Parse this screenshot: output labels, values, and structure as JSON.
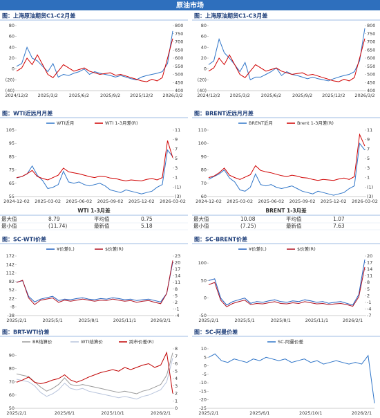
{
  "header": {
    "title": "原油市场"
  },
  "tables": [
    {
      "title": "WTI 1-3月差",
      "rows": [
        [
          "最大值",
          "8.79",
          "平均值",
          "0.75"
        ],
        [
          "最小值",
          "(11.74)",
          "最新值",
          "5.18"
        ]
      ]
    },
    {
      "title": "BRENT 1-3月差",
      "rows": [
        [
          "最大值",
          "10.08",
          "平均值",
          "1.07"
        ],
        [
          "最小值",
          "(7.25)",
          "最新值",
          "7.63"
        ]
      ]
    }
  ],
  "chart_data": [
    {
      "type": "line",
      "title": "图：上海原油期货C1-C2月差",
      "categories": [
        "2024/12/2",
        null,
        null,
        null,
        null,
        null,
        "2025/3/2",
        null,
        null,
        null,
        null,
        null,
        "2025/6/2",
        null,
        null,
        null,
        null,
        null,
        "2025/9/2",
        null,
        null,
        null,
        null,
        null,
        "2025/12/2",
        null,
        null,
        null,
        null,
        null,
        "2026/3/2"
      ],
      "series": [
        {
          "color": "#2f75c8",
          "values": [
            5,
            10,
            40,
            20,
            15,
            5,
            -5,
            10,
            -15,
            -10,
            -12,
            -8,
            -5,
            0,
            -10,
            -5,
            -8,
            -10,
            -12,
            -15,
            -12,
            -15,
            -18,
            -20,
            -15,
            -12,
            -10,
            -8,
            -5,
            10,
            70
          ]
        },
        {
          "color": "#d00000",
          "axis": "y2",
          "values": [
            520,
            540,
            600,
            560,
            620,
            560,
            500,
            480,
            520,
            560,
            540,
            520,
            530,
            540,
            520,
            510,
            500,
            505,
            510,
            495,
            500,
            490,
            480,
            470,
            460,
            455,
            470,
            460,
            480,
            600,
            720
          ]
        }
      ],
      "ylim": [
        -40,
        80
      ],
      "yticks": [
        80,
        60,
        40,
        20,
        0,
        {
          "value": -20,
          "label": "(20)"
        },
        {
          "value": -40,
          "label": "(40)"
        }
      ],
      "y2lim": [
        400,
        800
      ],
      "y2ticks": [
        800,
        750,
        700,
        650,
        600,
        550,
        500,
        450,
        400
      ]
    },
    {
      "type": "line",
      "title": "图：上海原油期货C1-C3月差",
      "categories": [
        "2024/12/2",
        null,
        null,
        null,
        null,
        null,
        "2025/3/2",
        null,
        null,
        null,
        null,
        null,
        "2025/6/2",
        null,
        null,
        null,
        null,
        null,
        "2025/9/2",
        null,
        null,
        null,
        null,
        null,
        "2025/12/2",
        null,
        null,
        null,
        null,
        null,
        "2026/3/2"
      ],
      "series": [
        {
          "color": "#2f75c8",
          "values": [
            8,
            15,
            55,
            30,
            20,
            8,
            -5,
            12,
            -20,
            -15,
            -15,
            -10,
            -5,
            2,
            -12,
            -5,
            -10,
            -12,
            -15,
            -18,
            -15,
            -18,
            -20,
            -22,
            -18,
            -15,
            -12,
            -10,
            -5,
            15,
            75
          ]
        },
        {
          "color": "#d00000",
          "axis": "y2",
          "values": [
            520,
            540,
            600,
            560,
            620,
            560,
            500,
            480,
            520,
            560,
            540,
            520,
            530,
            540,
            520,
            510,
            500,
            505,
            510,
            495,
            500,
            490,
            480,
            470,
            460,
            455,
            470,
            460,
            480,
            600,
            720
          ]
        }
      ],
      "ylim": [
        -40,
        80
      ],
      "yticks": [
        80,
        60,
        40,
        20,
        0,
        {
          "value": -20,
          "label": "(20)"
        },
        {
          "value": -40,
          "label": "(40)"
        }
      ],
      "y2lim": [
        400,
        800
      ],
      "y2ticks": [
        800,
        750,
        700,
        650,
        600,
        550,
        500,
        450,
        400
      ]
    },
    {
      "type": "line",
      "title": "图：WTI近远月月差",
      "categories": [
        "2024-12-02",
        null,
        null,
        null,
        null,
        null,
        "2025-03-02",
        null,
        null,
        null,
        null,
        null,
        "2025-06-02",
        null,
        null,
        null,
        null,
        null,
        "2025-09-02",
        null,
        null,
        null,
        null,
        null,
        "2025-12-02",
        null,
        null,
        null,
        null,
        null,
        "2026-03-02"
      ],
      "series": [
        {
          "name": "WTI近月",
          "color": "#2f75c8",
          "values": [
            69,
            70,
            72,
            78,
            71,
            67,
            61,
            62,
            64,
            74,
            66,
            65,
            66,
            64,
            63,
            64,
            65,
            63,
            60,
            59,
            58,
            60,
            59,
            58,
            57,
            58,
            59,
            62,
            64,
            90,
            85
          ]
        },
        {
          "name": "WTI 1-3月差(R)",
          "color": "#d00000",
          "axis": "y2",
          "values": [
            1,
            1.2,
            1.8,
            2.5,
            1.2,
            0.8,
            0.5,
            1,
            1.5,
            3,
            2.2,
            2,
            1.8,
            1.5,
            1.2,
            1,
            1.3,
            1.2,
            0.9,
            0.8,
            0.5,
            0.3,
            0.5,
            0.4,
            0.3,
            0.6,
            0.8,
            0.5,
            1,
            8.79,
            5.18
          ]
        }
      ],
      "ylim": [
        55,
        105
      ],
      "yticks": [
        105,
        95,
        85,
        75,
        65,
        55
      ],
      "y2lim": [
        -3,
        11
      ],
      "y2ticks": [
        11,
        9,
        7,
        5,
        3,
        1,
        {
          "value": -1,
          "label": "(1)"
        },
        {
          "value": -3,
          "label": "(3)"
        }
      ]
    },
    {
      "type": "line",
      "title": "图：BRENT近远月月差",
      "categories": [
        "2024-12-02",
        null,
        null,
        null,
        null,
        null,
        "2025-03-02",
        null,
        null,
        null,
        null,
        null,
        "2025-06-02",
        null,
        null,
        null,
        null,
        null,
        "2025-09-02",
        null,
        null,
        null,
        null,
        null,
        "2025-12-02",
        null,
        null,
        null,
        null,
        null,
        "2026-03-02"
      ],
      "series": [
        {
          "name": "BRENT近月",
          "color": "#2f75c8",
          "values": [
            73,
            75,
            77,
            80,
            74,
            71,
            65,
            64,
            67,
            77,
            69,
            68,
            69,
            67,
            66,
            67,
            68,
            66,
            64,
            63,
            62,
            64,
            63,
            62,
            61,
            62,
            63,
            66,
            68,
            100,
            95
          ]
        },
        {
          "name": "Brent 1-3月差(R)",
          "color": "#d00000",
          "axis": "y2",
          "values": [
            1,
            1.3,
            2,
            3,
            1.5,
            1,
            0.6,
            1.1,
            1.6,
            3.5,
            2.5,
            2.2,
            2,
            1.7,
            1.4,
            1.2,
            1.5,
            1.3,
            1,
            0.9,
            0.6,
            0.4,
            0.6,
            0.5,
            0.4,
            0.7,
            0.9,
            0.6,
            1.2,
            10.08,
            7.63
          ]
        }
      ],
      "ylim": [
        60,
        110
      ],
      "yticks": [
        110,
        100,
        90,
        80,
        70,
        60
      ],
      "y2lim": [
        -3,
        11
      ],
      "y2ticks": [
        11,
        9,
        7,
        5,
        3,
        1,
        {
          "value": -1,
          "label": "(1)"
        },
        {
          "value": -3,
          "label": "(3)"
        }
      ]
    },
    {
      "type": "line",
      "title": "图：SC-WTI价差",
      "categories": [
        "2025/2/1",
        null,
        null,
        null,
        null,
        null,
        "2025/5/1",
        null,
        null,
        null,
        null,
        null,
        "2025/8/1",
        null,
        null,
        null,
        null,
        null,
        "2025/11/1",
        null,
        null,
        null,
        null,
        null,
        "2026/2/1",
        null,
        null
      ],
      "series": [
        {
          "name": "¥价差(L)",
          "color": "#1f5fbf",
          "values": [
            80,
            85,
            30,
            10,
            20,
            25,
            30,
            15,
            20,
            18,
            22,
            25,
            20,
            18,
            22,
            20,
            25,
            22,
            18,
            20,
            15,
            18,
            20,
            15,
            10,
            40,
            150
          ]
        },
        {
          "name": "$价差(R)",
          "color": "#b01020",
          "axis": "y2",
          "values": [
            11,
            12,
            4,
            1,
            3,
            3.5,
            4,
            2,
            3,
            2.5,
            3,
            3.5,
            3,
            2.5,
            3,
            2.8,
            3.5,
            3,
            2.5,
            2.8,
            2,
            2.5,
            2.8,
            2,
            1.4,
            6,
            21
          ]
        }
      ],
      "ylim": [
        -38,
        172
      ],
      "yticks": [
        172,
        142,
        112,
        82,
        52,
        22,
        -8,
        -38
      ],
      "y2lim": [
        -4,
        23
      ],
      "y2ticks": [
        23,
        20,
        17,
        14,
        11,
        8,
        5,
        2,
        -1,
        -4
      ]
    },
    {
      "type": "line",
      "title": "图：SC-BRENT价差",
      "categories": [
        "2025/2/1",
        null,
        null,
        null,
        null,
        null,
        "2025/5/1",
        null,
        null,
        null,
        null,
        null,
        "2025/8/1",
        null,
        null,
        null,
        null,
        null,
        "2025/11/1",
        null,
        null,
        null,
        null,
        null,
        "2026/2/1",
        null,
        null
      ],
      "series": [
        {
          "name": "¥价差(L)",
          "color": "#1f5fbf",
          "values": [
            50,
            55,
            0,
            -20,
            -10,
            -5,
            0,
            -15,
            -10,
            -12,
            -8,
            -5,
            -10,
            -12,
            -8,
            -10,
            -5,
            -8,
            -12,
            -10,
            -15,
            -12,
            -10,
            -15,
            -20,
            10,
            110
          ]
        },
        {
          "name": "$价差(R)",
          "color": "#b01020",
          "axis": "y2",
          "values": [
            7,
            8,
            0,
            -3,
            -1.5,
            -0.7,
            0,
            -2,
            -1.5,
            -1.7,
            -1.2,
            -0.7,
            -1.5,
            -1.7,
            -1.2,
            -1.5,
            -0.7,
            -1.2,
            -1.7,
            -1.5,
            -2,
            -1.7,
            -1.5,
            -2,
            -2.8,
            1.5,
            15
          ]
        }
      ],
      "ylim": [
        -50,
        120
      ],
      "yticks": [
        100,
        50,
        0,
        -50
      ],
      "y2lim": [
        -7,
        20
      ],
      "y2ticks": [
        20,
        17,
        14,
        11,
        8,
        5,
        2,
        -1,
        -4,
        -7
      ]
    },
    {
      "type": "line",
      "title": "图：BRT-WTI价差",
      "categories": [
        "2025/2/1",
        null,
        null,
        null,
        null,
        null,
        null,
        null,
        "2025/6/1",
        null,
        null,
        null,
        null,
        null,
        null,
        null,
        "2025/10/1",
        null,
        null,
        null,
        null,
        null,
        null,
        null,
        "2026/2/1",
        null,
        null
      ],
      "series": [
        {
          "name": "BR结算价",
          "color": "#9a9a9a",
          "values": [
            76,
            75,
            74,
            70,
            66,
            63,
            65,
            68,
            73,
            68,
            67,
            68,
            67,
            66,
            65,
            64,
            63,
            62,
            63,
            62,
            61,
            63,
            64,
            66,
            68,
            75,
            92
          ]
        },
        {
          "name": "WTI结算价",
          "color": "#b8c4dc",
          "values": [
            72,
            71,
            70,
            67,
            62,
            59,
            61,
            64,
            69,
            65,
            64,
            65,
            63,
            62,
            61,
            60,
            59,
            58,
            59,
            58,
            57,
            59,
            60,
            62,
            64,
            70,
            88
          ]
        },
        {
          "name": "跨市价差(R)",
          "color": "#c00000",
          "axis": "y2",
          "values": [
            3.5,
            3.8,
            4.2,
            3.5,
            3.3,
            3.5,
            3.8,
            4,
            4.5,
            3.8,
            3.5,
            3.8,
            4.2,
            4.5,
            4.8,
            5,
            5.2,
            5,
            5.5,
            5.2,
            5.5,
            5.8,
            6,
            5.5,
            5.8,
            7.5,
            2
          ]
        }
      ],
      "ylim": [
        50,
        95
      ],
      "yticks": [
        90,
        80,
        70,
        60,
        50
      ],
      "y2lim": [
        0,
        8
      ],
      "y2ticks": [
        8,
        7,
        6,
        5,
        4,
        3,
        2,
        1,
        0
      ]
    },
    {
      "type": "line",
      "title": "图：SC-阿曼价差",
      "categories": [
        "2025/2/1",
        null,
        null,
        null,
        null,
        null,
        null,
        null,
        "2025/6/1",
        null,
        null,
        null,
        null,
        null,
        null,
        null,
        "2025/10/1",
        null,
        null,
        null,
        null,
        null,
        null,
        null,
        "2026/2/1",
        null,
        null
      ],
      "series": [
        {
          "name": "SC-阿曼价差",
          "color": "#2f75c8",
          "values": [
            5,
            7,
            3,
            2,
            4,
            3,
            2,
            4,
            3,
            5,
            4,
            3,
            4,
            2,
            3,
            4,
            2,
            3,
            1,
            2,
            3,
            2,
            1,
            2,
            1,
            6,
            -22
          ]
        }
      ],
      "ylim": [
        -25,
        10
      ],
      "yticks": [
        10,
        5,
        0,
        -5,
        -10,
        -15,
        -20,
        -25
      ]
    }
  ]
}
